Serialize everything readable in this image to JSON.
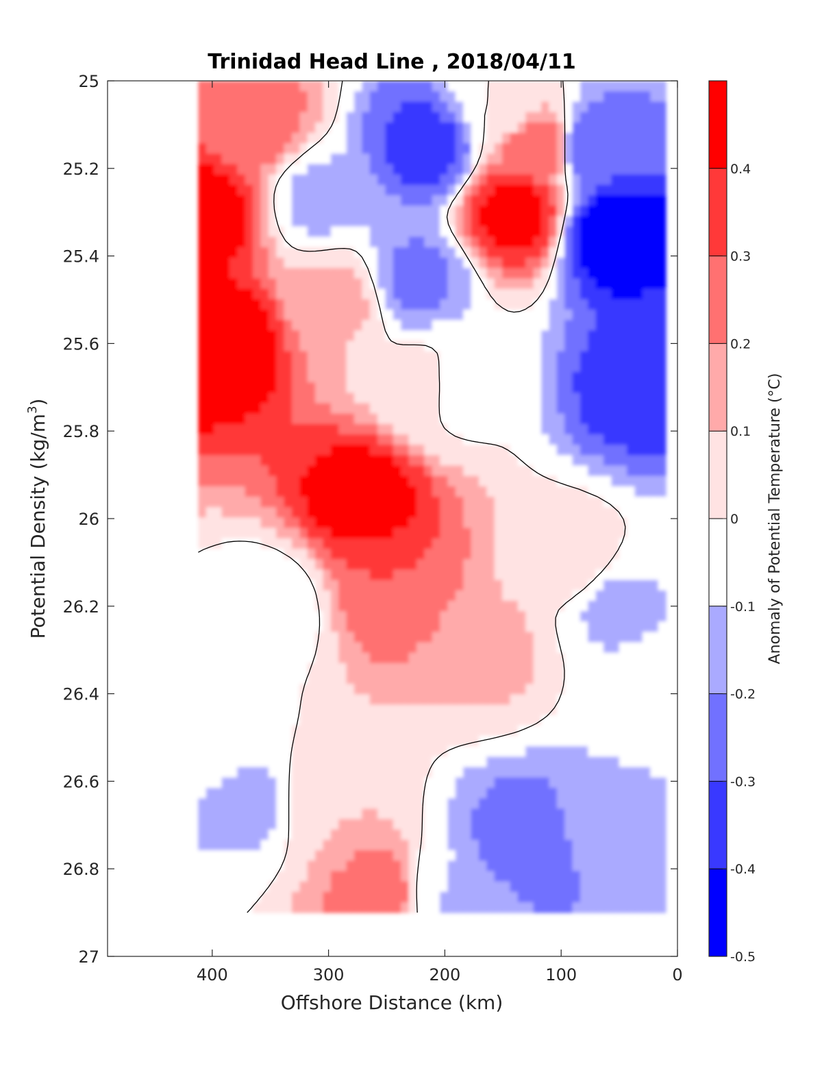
{
  "chart_data": {
    "type": "heatmap",
    "title": "Trinidad Head Line , 2018/04/11",
    "xlabel": "Offshore Distance (km)",
    "ylabel": "Potential Density (kg/m",
    "ylabel_sup": "3",
    "ylabel_close": ")",
    "xlim": [
      490,
      0
    ],
    "ylim": [
      25,
      27
    ],
    "x_reversed": true,
    "y_reversed": true,
    "xticks": [
      400,
      300,
      200,
      100,
      0
    ],
    "yticks": [
      25,
      25.2,
      25.4,
      25.6,
      25.8,
      26,
      26.2,
      26.4,
      26.6,
      26.8,
      27
    ],
    "grid": false,
    "colorbar": {
      "label": "Anomaly of Potential Temperature (°C)",
      "range": [
        -0.5,
        0.5
      ],
      "ticks": [
        0.4,
        0.3,
        0.2,
        0.1,
        0,
        -0.1,
        -0.2,
        -0.3,
        -0.4,
        -0.5
      ],
      "colormap": "blue-white-red",
      "negative_color": "#0000ff",
      "positive_color": "#ff0000",
      "neutral_color": "#ffffff"
    },
    "data_extent": {
      "x": [
        412,
        10
      ],
      "y": [
        25,
        26.9
      ]
    },
    "features": [
      {
        "x": 390,
        "y": 25.6,
        "value": 0.48
      },
      {
        "x": 405,
        "y": 25.3,
        "value": 0.45
      },
      {
        "x": 365,
        "y": 25.1,
        "value": 0.25
      },
      {
        "x": 268,
        "y": 25.95,
        "value": 0.47
      },
      {
        "x": 245,
        "y": 26.15,
        "value": 0.3
      },
      {
        "x": 290,
        "y": 25.5,
        "value": 0.12
      },
      {
        "x": 215,
        "y": 25.7,
        "value": 0.05
      },
      {
        "x": 255,
        "y": 26.85,
        "value": 0.25
      },
      {
        "x": 300,
        "y": 26.65,
        "value": 0.1
      },
      {
        "x": 350,
        "y": 26.2,
        "value": -0.06
      },
      {
        "x": 370,
        "y": 26.65,
        "value": -0.12
      },
      {
        "x": 405,
        "y": 26.5,
        "value": -0.05
      },
      {
        "x": 308,
        "y": 25.27,
        "value": -0.12
      },
      {
        "x": 215,
        "y": 25.15,
        "value": -0.34
      },
      {
        "x": 225,
        "y": 25.45,
        "value": -0.22
      },
      {
        "x": 195,
        "y": 25.7,
        "value": -0.05
      },
      {
        "x": 140,
        "y": 25.3,
        "value": 0.45
      },
      {
        "x": 150,
        "y": 25.05,
        "value": 0.0
      },
      {
        "x": 118,
        "y": 25.15,
        "value": 0.28
      },
      {
        "x": 160,
        "y": 26.3,
        "value": 0.12
      },
      {
        "x": 90,
        "y": 26.1,
        "value": 0.06
      },
      {
        "x": 55,
        "y": 25.35,
        "value": -0.48
      },
      {
        "x": 35,
        "y": 25.7,
        "value": -0.35
      },
      {
        "x": 75,
        "y": 25.15,
        "value": -0.3
      },
      {
        "x": 55,
        "y": 26.2,
        "value": -0.12
      },
      {
        "x": 130,
        "y": 26.75,
        "value": -0.3
      },
      {
        "x": 200,
        "y": 26.85,
        "value": -0.1
      },
      {
        "x": 60,
        "y": 26.7,
        "value": -0.12
      },
      {
        "x": 25,
        "y": 26.4,
        "value": -0.06
      },
      {
        "x": 175,
        "y": 26.9,
        "value": -0.15
      }
    ]
  }
}
